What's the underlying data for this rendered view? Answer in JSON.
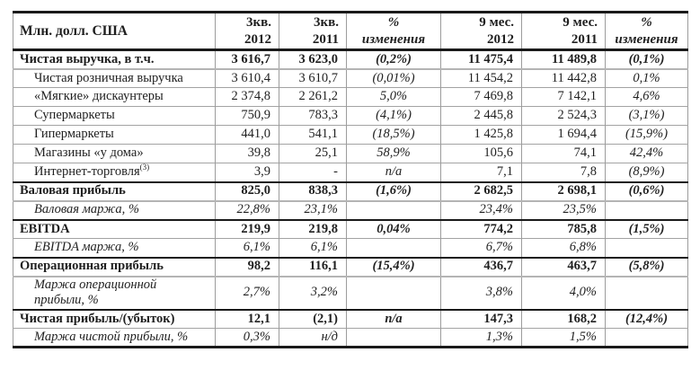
{
  "colors": {
    "text": "#1f1f1f",
    "heavy_rule": "#1a1a1a",
    "light_rule": "#9c9c9c",
    "background": "#ffffff"
  },
  "table": {
    "columns": [
      {
        "id": "label",
        "line1": "Млн. долл. США",
        "line2": "",
        "align": "left",
        "italic": false
      },
      {
        "id": "q3-2012",
        "line1": "3кв.",
        "line2": "2012",
        "align": "right",
        "italic": false
      },
      {
        "id": "q3-2011",
        "line1": "3кв.",
        "line2": "2011",
        "align": "right",
        "italic": false
      },
      {
        "id": "chg-q3",
        "line1": "%",
        "line2": "изменения",
        "align": "center",
        "italic": true
      },
      {
        "id": "m9-2012",
        "line1": "9 мес.",
        "line2": "2012",
        "align": "right",
        "italic": false
      },
      {
        "id": "m9-2011",
        "line1": "9 мес.",
        "line2": "2011",
        "align": "right",
        "italic": false
      },
      {
        "id": "chg-m9",
        "line1": "%",
        "line2": "изменения",
        "align": "center",
        "italic": true
      }
    ],
    "rows": [
      {
        "label": "Чистая выручка, в т.ч.",
        "type": "section",
        "border_top": "black",
        "values": [
          "3 616,7",
          "3 623,0",
          "(0,2%)",
          "11 475,4",
          "11 489,8",
          "(0,1%)"
        ]
      },
      {
        "label": "Чистая розничная выручка",
        "type": "sub",
        "border_top": "gray2",
        "values": [
          "3 610,4",
          "3 610,7",
          "(0,01%)",
          "11 454,2",
          "11 442,8",
          "0,1%"
        ]
      },
      {
        "label": "«Мягкие» дискаунтеры",
        "type": "sub",
        "border_top": "gray",
        "values": [
          "2 374,8",
          "2 261,2",
          "5,0%",
          "7 469,8",
          "7 142,1",
          "4,6%"
        ]
      },
      {
        "label": "Супермаркеты",
        "type": "sub",
        "border_top": "gray",
        "values": [
          "750,9",
          "783,3",
          "(4,1%)",
          "2 445,8",
          "2 524,3",
          "(3,1%)"
        ]
      },
      {
        "label": "Гипермаркеты",
        "type": "sub",
        "border_top": "gray",
        "values": [
          "441,0",
          "541,1",
          "(18,5%)",
          "1 425,8",
          "1 694,4",
          "(15,9%)"
        ]
      },
      {
        "label": "Магазины «у дома»",
        "type": "sub",
        "border_top": "gray",
        "values": [
          "39,8",
          "25,1",
          "58,9%",
          "105,6",
          "74,1",
          "42,4%"
        ]
      },
      {
        "label": "Интернет-торговля",
        "sup": "(3)",
        "type": "sub",
        "border_top": "gray",
        "values": [
          "3,9",
          "-",
          "n/a",
          "7,1",
          "7,8",
          "(8,9%)"
        ]
      },
      {
        "label": "Валовая прибыль",
        "type": "section",
        "border_top": "black",
        "values": [
          "825,0",
          "838,3",
          "(1,6%)",
          "2 682,5",
          "2 698,1",
          "(0,6%)"
        ]
      },
      {
        "label": "Валовая маржа, %",
        "type": "margin",
        "border_top": "gray2",
        "values": [
          "22,8%",
          "23,1%",
          "",
          "23,4%",
          "23,5%",
          ""
        ]
      },
      {
        "label": "EBITDA",
        "type": "section",
        "border_top": "black",
        "values": [
          "219,9",
          "219,8",
          "0,04%",
          "774,2",
          "785,8",
          "(1,5%)"
        ]
      },
      {
        "label": "EBITDA маржа, %",
        "type": "margin",
        "border_top": "gray",
        "values": [
          "6,1%",
          "6,1%",
          "",
          "6,7%",
          "6,8%",
          ""
        ]
      },
      {
        "label": "Операционная прибыль",
        "type": "section",
        "border_top": "black",
        "values": [
          "98,2",
          "116,1",
          "(15,4%)",
          "436,7",
          "463,7",
          "(5,8%)"
        ]
      },
      {
        "label": "Маржа операционной прибыли, %",
        "type": "margin",
        "border_top": "gray2",
        "tall": true,
        "values": [
          "2,7%",
          "3,2%",
          "",
          "3,8%",
          "4,0%",
          ""
        ]
      },
      {
        "label": "Чистая прибыль/(убыток)",
        "type": "section",
        "border_top": "black",
        "values": [
          "12,1",
          "(2,1)",
          "n/a",
          "147,3",
          "168,2",
          "(12,4%)"
        ]
      },
      {
        "label": "Маржа чистой прибыли, %",
        "type": "margin",
        "border_top": "gray",
        "values": [
          "0,3%",
          "н/д",
          "",
          "1,3%",
          "1,5%",
          ""
        ]
      }
    ]
  }
}
